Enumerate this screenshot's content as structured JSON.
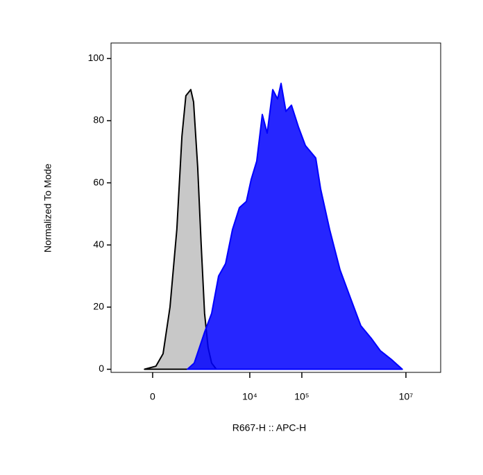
{
  "chart_data": {
    "type": "area",
    "xlabel": "R667-H :: APC-H",
    "ylabel": "Normalized To Mode",
    "xscale": "arcsinh",
    "xlim": [
      -835,
      46500000
    ],
    "xticks": [
      0,
      {
        "value": 10000,
        "label": "10⁴"
      },
      {
        "value": 100000,
        "label": "10⁵"
      },
      {
        "value": 10000000,
        "label": "10⁷"
      }
    ],
    "ylim": [
      -1,
      105
    ],
    "yticks": [
      0,
      20,
      40,
      60,
      80,
      100
    ],
    "series": [
      {
        "color": "#c8c8c8",
        "line_color": "#000000",
        "x": [
          -100,
          40,
          130,
          230,
          350,
          460,
          560,
          710,
          810,
          980,
          1150,
          1340,
          1570,
          1840,
          2270
        ],
        "values": [
          0,
          1,
          5,
          20,
          45,
          75,
          88,
          90,
          86,
          65,
          40,
          18,
          7,
          2,
          0
        ]
      },
      {
        "color": "#0000ff",
        "line_color": "#0000ff",
        "x": [
          604,
          835,
          1346,
          1841,
          2508,
          3420,
          4650,
          6310,
          8590,
          10600,
          13600,
          17400,
          21600,
          27600,
          34200,
          39900,
          49500,
          63200,
          86000,
          117000,
          185000,
          230000,
          342000,
          542000,
          857000,
          1360000,
          2150000,
          3210000,
          5390000,
          8510000
        ],
        "values": [
          0,
          2,
          12,
          18,
          30,
          34,
          45,
          52,
          54,
          61,
          67,
          82,
          76,
          90,
          87,
          92,
          83,
          85,
          78,
          72,
          68,
          58,
          45,
          32,
          23,
          14,
          10,
          6,
          3,
          0
        ]
      }
    ]
  }
}
